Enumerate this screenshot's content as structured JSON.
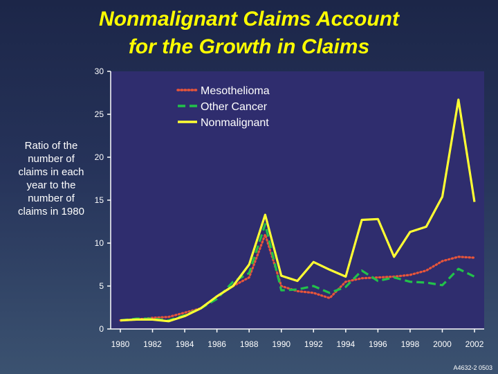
{
  "title_line1": "Nonmalignant Claims Account",
  "title_line2": "for the Growth in Claims",
  "footnote": "A4632-2 0503",
  "chart_data": {
    "type": "line",
    "title": "Nonmalignant Claims Account for the Growth in Claims",
    "ylabel": "Ratio of the number of claims in each year to the number of claims in 1980",
    "xlabel": "",
    "x": [
      1980,
      1981,
      1982,
      1983,
      1984,
      1985,
      1986,
      1987,
      1988,
      1989,
      1990,
      1991,
      1992,
      1993,
      1994,
      1995,
      1996,
      1997,
      1998,
      1999,
      2000,
      2001,
      2002
    ],
    "xlim": [
      1979.4,
      2002.6
    ],
    "ylim": [
      0,
      30
    ],
    "x_ticks": [
      1980,
      1982,
      1984,
      1986,
      1988,
      1990,
      1992,
      1994,
      1996,
      1998,
      2000,
      2002
    ],
    "y_ticks": [
      0,
      5,
      10,
      15,
      20,
      25,
      30
    ],
    "grid": false,
    "legend_position": "top-right",
    "plot_background": "#2f2d6e",
    "series": [
      {
        "name": "Mesothelioma",
        "style": "dotted",
        "color": "#e8553a",
        "values": [
          1.0,
          1.1,
          1.3,
          1.4,
          1.9,
          2.4,
          3.8,
          5.0,
          6.0,
          11.0,
          5.0,
          4.4,
          4.2,
          3.6,
          5.5,
          5.9,
          6.0,
          6.1,
          6.3,
          6.8,
          7.9,
          8.4,
          8.3
        ]
      },
      {
        "name": "Other Cancer",
        "style": "dashed",
        "color": "#22c24a",
        "values": [
          1.0,
          1.2,
          1.2,
          1.0,
          1.6,
          2.4,
          3.5,
          5.5,
          6.5,
          12.2,
          4.5,
          4.6,
          5.0,
          4.2,
          4.9,
          6.8,
          5.6,
          6.0,
          5.5,
          5.4,
          5.1,
          7.0,
          6.1
        ]
      },
      {
        "name": "Nonmalignant",
        "style": "solid",
        "color": "#ffff33",
        "values": [
          1.0,
          1.1,
          1.1,
          0.9,
          1.5,
          2.4,
          3.8,
          5.0,
          7.5,
          13.3,
          6.2,
          5.6,
          7.8,
          6.9,
          6.1,
          12.7,
          12.8,
          8.4,
          11.3,
          11.9,
          15.4,
          26.7,
          14.8
        ]
      }
    ]
  }
}
